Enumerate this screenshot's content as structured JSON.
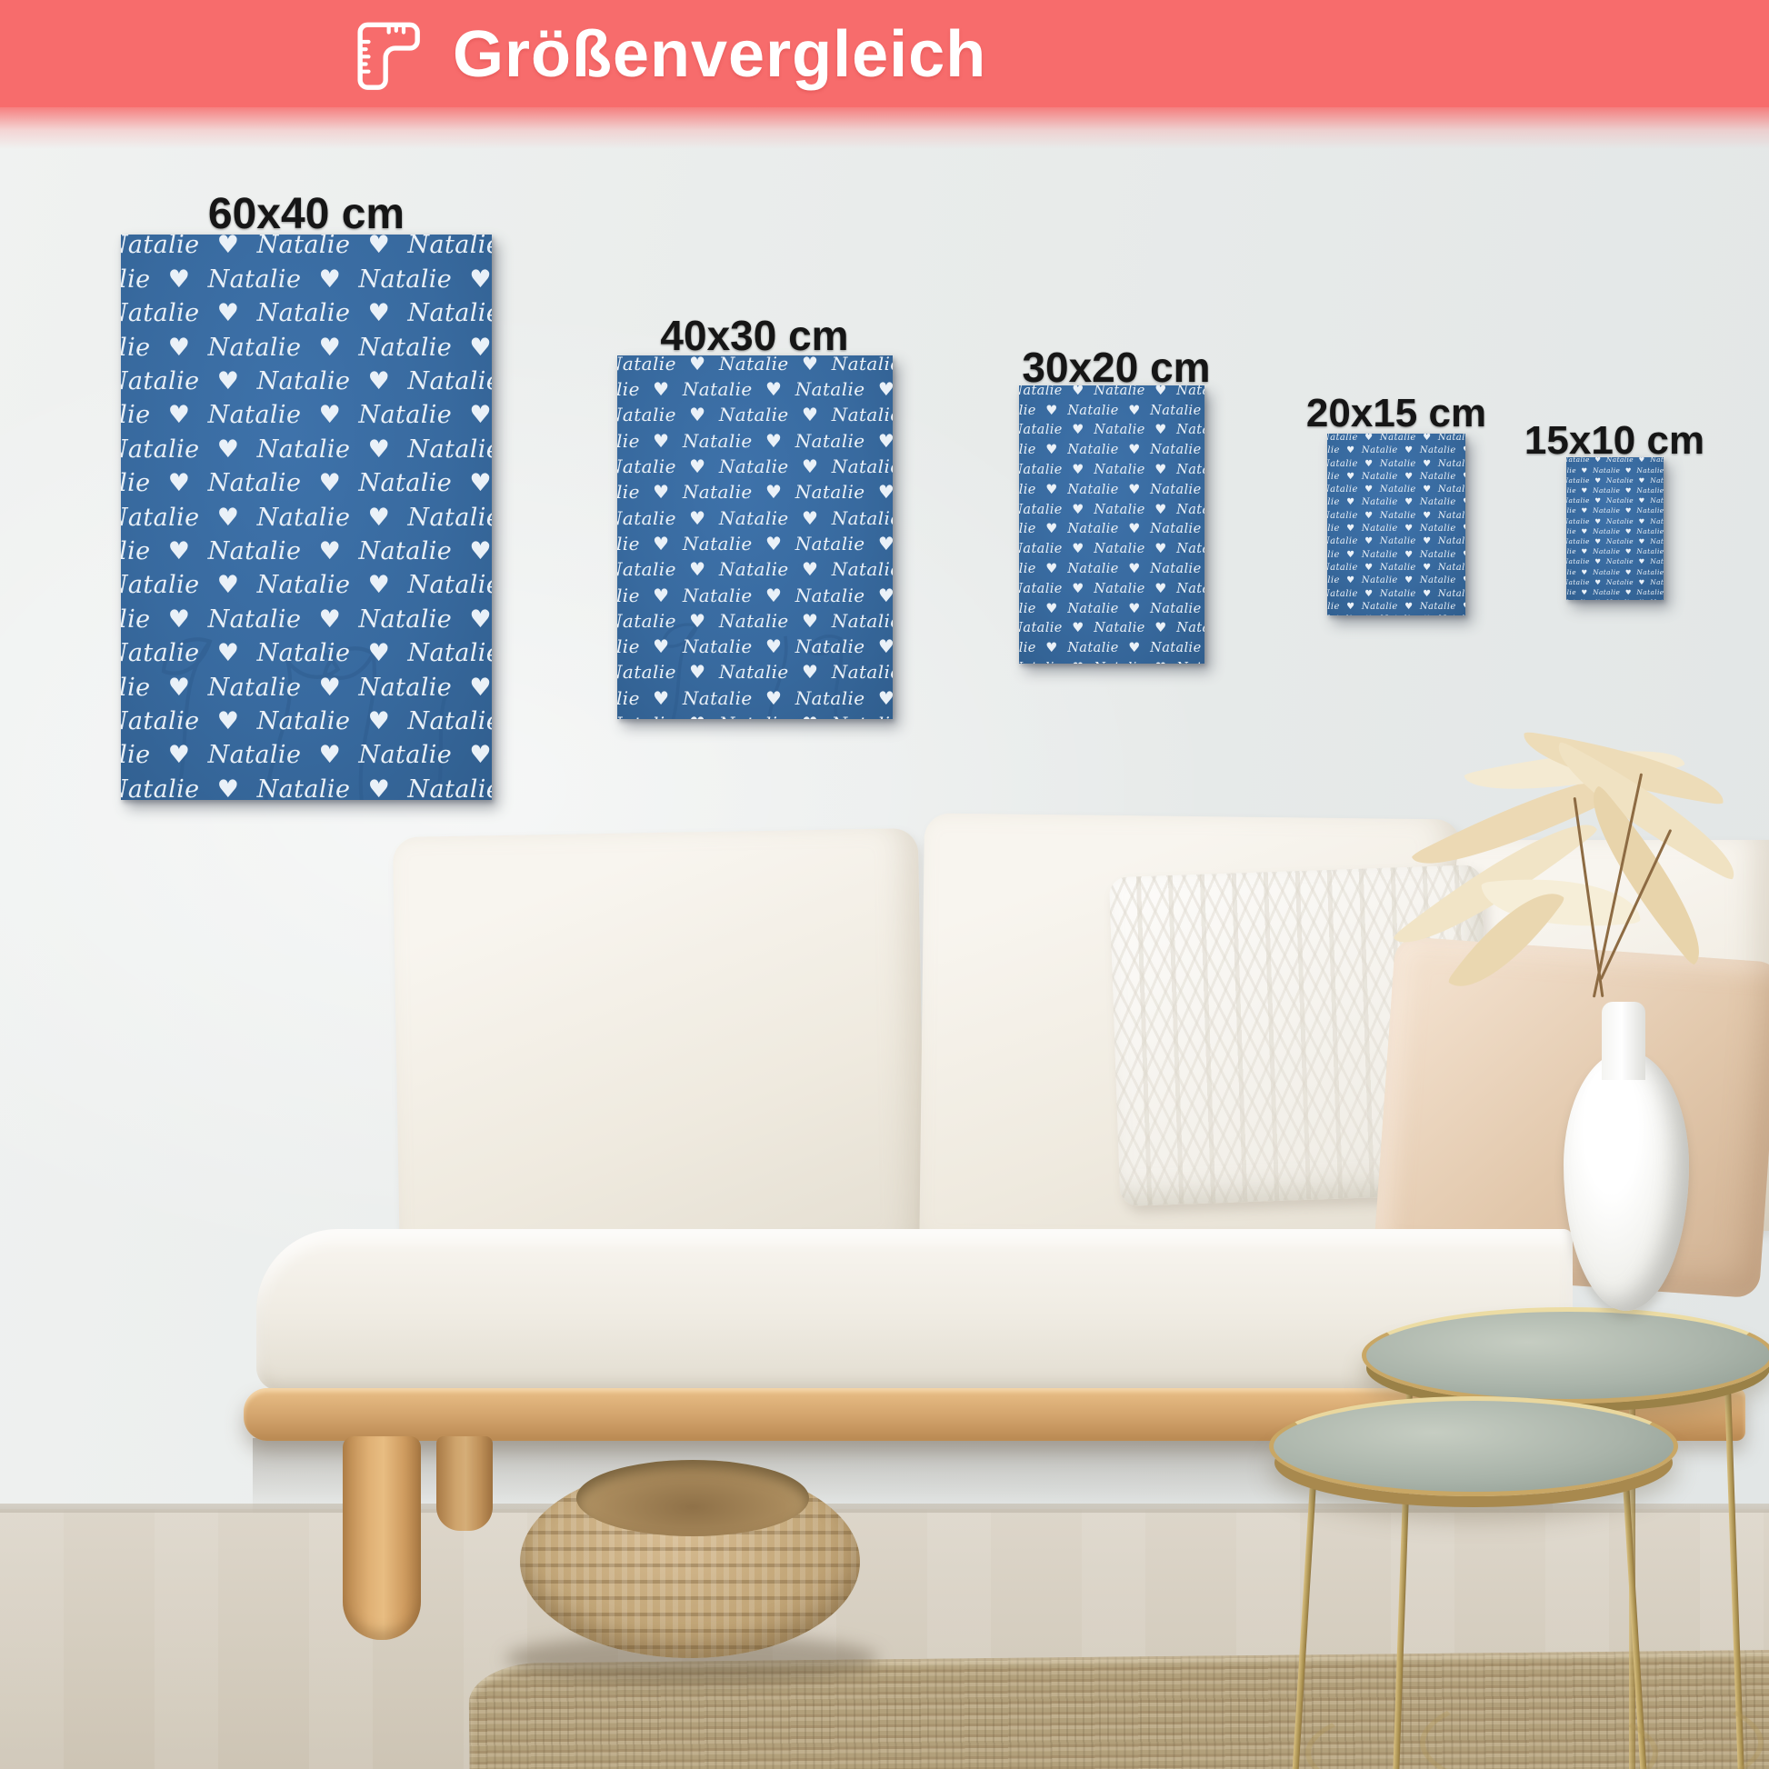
{
  "header": {
    "title": "Größenvergleich",
    "icon": "ruler-icon"
  },
  "posters": [
    {
      "id": "60x40",
      "label": "60x40 cm"
    },
    {
      "id": "40x30",
      "label": "40x30 cm"
    },
    {
      "id": "30x20",
      "label": "30x20 cm"
    },
    {
      "id": "20x15",
      "label": "20x15 cm"
    },
    {
      "id": "15x10",
      "label": "15x10 cm"
    }
  ],
  "pattern": {
    "name": "Natalie",
    "heart": "♥"
  },
  "colors": {
    "header_bg": "#f76c6c",
    "poster_bg": "#386a9f",
    "poster_text": "#f2f7fc",
    "label_text": "#161616"
  }
}
